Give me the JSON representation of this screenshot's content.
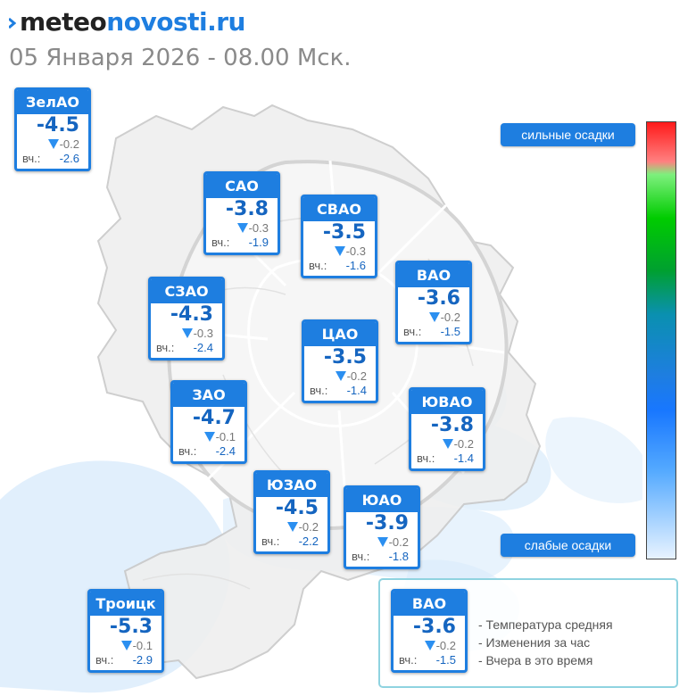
{
  "header": {
    "logo_part1": "meteo",
    "logo_part2": "novosti.ru",
    "date_text": "05 Января 2026 - 08.00 Мск."
  },
  "colors": {
    "accent": "#1e7ee0",
    "card_temp": "#1565c0",
    "precip_light": "#d6e9fb"
  },
  "districts": [
    {
      "name": "ЗелАО",
      "temp": "-4.5",
      "change": "-0.2",
      "yest_label": "вч.:",
      "yest": "-2.6"
    },
    {
      "name": "САО",
      "temp": "-3.8",
      "change": "-0.3",
      "yest_label": "вч.:",
      "yest": "-1.9"
    },
    {
      "name": "СВАО",
      "temp": "-3.5",
      "change": "-0.3",
      "yest_label": "вч.:",
      "yest": "-1.6"
    },
    {
      "name": "ВАО",
      "temp": "-3.6",
      "change": "-0.2",
      "yest_label": "вч.:",
      "yest": "-1.5"
    },
    {
      "name": "СЗАО",
      "temp": "-4.3",
      "change": "-0.3",
      "yest_label": "вч.:",
      "yest": "-2.4"
    },
    {
      "name": "ЦАО",
      "temp": "-3.5",
      "change": "-0.2",
      "yest_label": "вч.:",
      "yest": "-1.4"
    },
    {
      "name": "ЗАО",
      "temp": "-4.7",
      "change": "-0.1",
      "yest_label": "вч.:",
      "yest": "-2.4"
    },
    {
      "name": "ЮВАО",
      "temp": "-3.8",
      "change": "-0.2",
      "yest_label": "вч.:",
      "yest": "-1.4"
    },
    {
      "name": "ЮЗАО",
      "temp": "-4.5",
      "change": "-0.2",
      "yest_label": "вч.:",
      "yest": "-2.2"
    },
    {
      "name": "ЮАО",
      "temp": "-3.9",
      "change": "-0.2",
      "yest_label": "вч.:",
      "yest": "-1.8"
    },
    {
      "name": "Троицк",
      "temp": "-5.3",
      "change": "-0.1",
      "yest_label": "вч.:",
      "yest": "-2.9"
    }
  ],
  "scale": {
    "top_label": "сильные осадки",
    "bottom_label": "слабые осадки"
  },
  "legend": {
    "sample": {
      "name": "ВАО",
      "temp": "-3.6",
      "change": "-0.2",
      "yest_label": "вч.:",
      "yest": "-1.5"
    },
    "items": [
      "- Температура средняя",
      "- Изменения за час",
      "- Вчера в это время"
    ]
  }
}
